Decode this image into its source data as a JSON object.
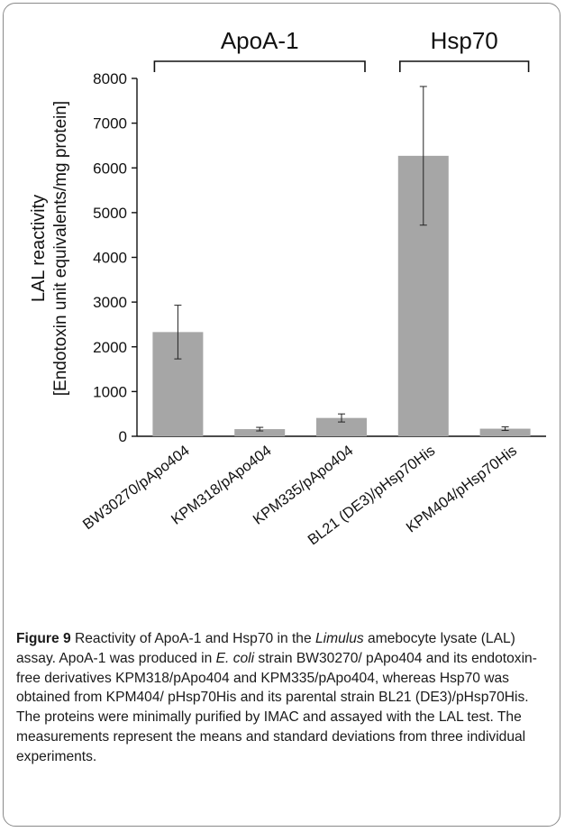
{
  "figure": {
    "label": "Figure 9",
    "caption_parts": [
      {
        "text": " Reactivity of ApoA-1 and Hsp70 in the ",
        "italic": false
      },
      {
        "text": "Limulus",
        "italic": true
      },
      {
        "text": " amebocyte lysate (LAL) assay. ApoA-1 was produced in ",
        "italic": false
      },
      {
        "text": "E. coli",
        "italic": true
      },
      {
        "text": " strain BW30270/ pApo404 and its endotoxin-free derivatives KPM318/pApo404 and KPM335/pApo404, whereas Hsp70 was obtained from KPM404/ pHsp70His and its parental strain BL21 (DE3)/pHsp70His. The proteins were minimally purified by IMAC and assayed with the LAL test. The measurements represent the means and standard deviations from three individual experiments.",
        "italic": false
      }
    ]
  },
  "chart_data": {
    "type": "bar",
    "ylabel_line1": "LAL reactivity",
    "ylabel_line2": "[Endotoxin unit equivalents/mg protein]",
    "ylim": [
      0,
      8000
    ],
    "yticks": [
      0,
      1000,
      2000,
      3000,
      4000,
      5000,
      6000,
      7000,
      8000
    ],
    "categories": [
      "BW30270/pApo404",
      "KPM318/pApo404",
      "KPM335/pApo404",
      "BL21 (DE3)/pHsp70His",
      "KPM404/pHsp70His"
    ],
    "values": [
      2330,
      160,
      410,
      6270,
      170
    ],
    "errors": [
      600,
      40,
      90,
      1550,
      40
    ],
    "groups": [
      {
        "label": "ApoA-1",
        "start": 0,
        "end": 2
      },
      {
        "label": "Hsp70",
        "start": 3,
        "end": 4
      }
    ],
    "bar_color": "#a6a6a6"
  }
}
